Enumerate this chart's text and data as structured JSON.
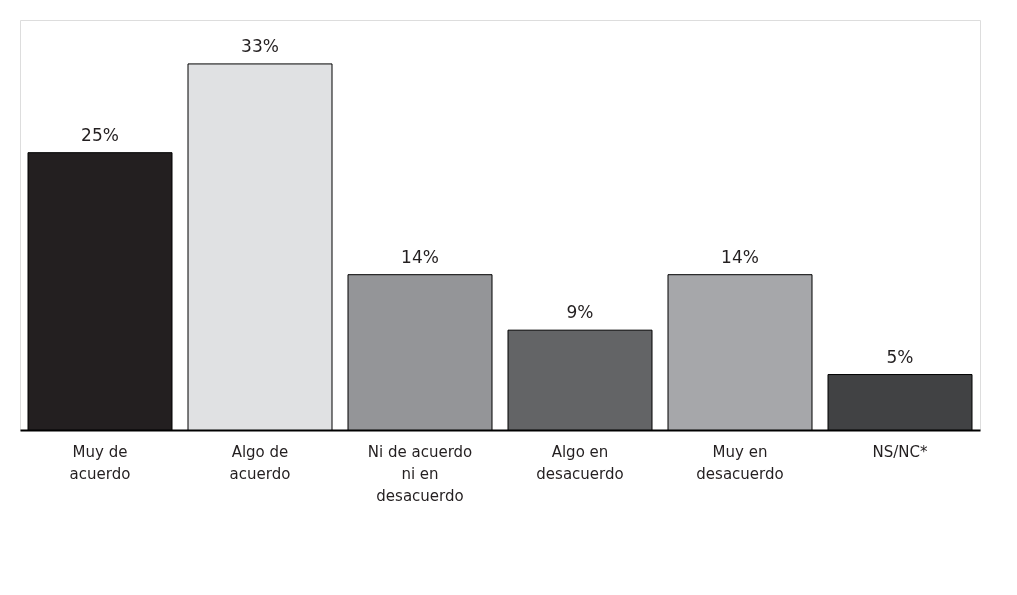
{
  "chart_data": {
    "type": "bar",
    "categories": [
      "Muy de acuerdo",
      "Algo de acuerdo",
      "Ni de acuerdo ni en desacuerdo",
      "Algo en desacuerdo",
      "Muy en desacuerdo",
      "NS/NC*"
    ],
    "values": [
      25,
      33,
      14,
      9,
      14,
      5
    ],
    "colors": [
      "#231f20",
      "#e0e1e3",
      "#949598",
      "#636466",
      "#a6a7aa",
      "#414244"
    ],
    "value_labels": [
      "25%",
      "33%",
      "14%",
      "9%",
      "14%",
      "5%"
    ],
    "grid": false
  }
}
